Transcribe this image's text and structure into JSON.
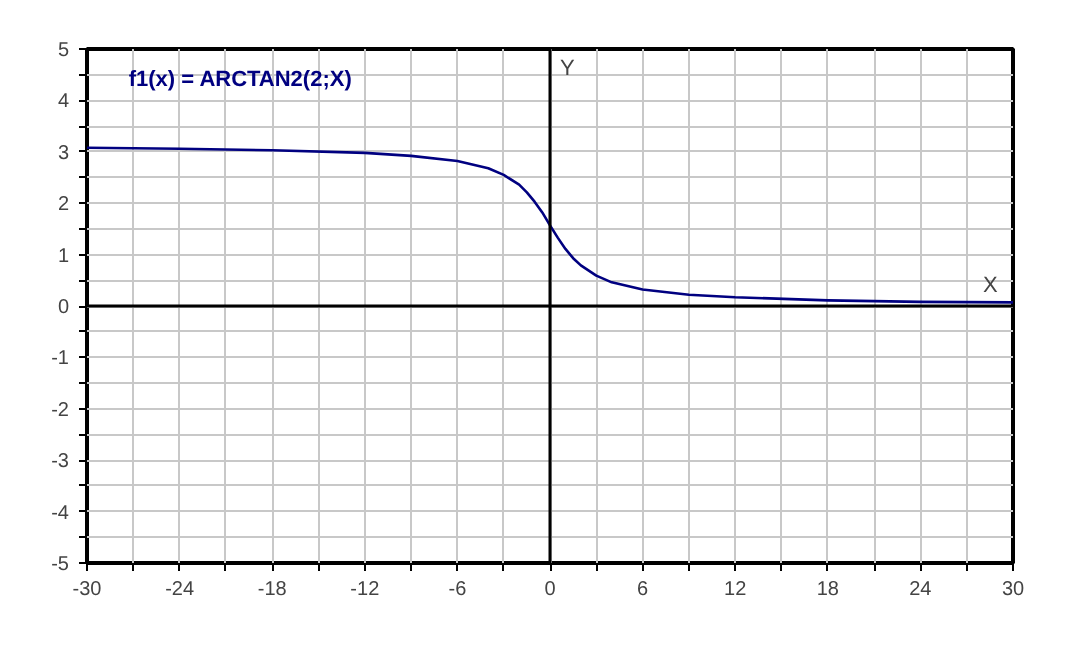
{
  "chart_data": {
    "type": "line",
    "xlabel": "X",
    "ylabel": "Y",
    "x": [
      -30,
      -24,
      -18,
      -12,
      -9,
      -6,
      -4,
      -3,
      -2,
      -1.5,
      -1,
      -0.5,
      0,
      0.5,
      1,
      1.5,
      2,
      3,
      4,
      6,
      9,
      12,
      18,
      24,
      30
    ],
    "series": [
      {
        "name": "f1(x) = ARCTAN2(2;X)",
        "color": "#000080",
        "values": [
          3.08,
          3.06,
          3.03,
          2.98,
          2.92,
          2.82,
          2.68,
          2.55,
          2.36,
          2.21,
          2.03,
          1.82,
          1.57,
          1.33,
          1.11,
          0.93,
          0.79,
          0.59,
          0.46,
          0.32,
          0.22,
          0.17,
          0.11,
          0.08,
          0.07
        ]
      }
    ],
    "xlim": [
      -30,
      30
    ],
    "ylim": [
      -5,
      5
    ],
    "xticks": [
      -30,
      {
        "value": -27,
        "label": null
      },
      -24,
      {
        "value": -21,
        "label": null
      },
      -18,
      {
        "value": -15,
        "label": null
      },
      -12,
      {
        "value": -9,
        "label": null
      },
      -6,
      {
        "value": -3,
        "label": null
      },
      0,
      {
        "value": 3,
        "label": null
      },
      6,
      {
        "value": 9,
        "label": null
      },
      12,
      {
        "value": 15,
        "label": null
      },
      18,
      {
        "value": 21,
        "label": null
      },
      24,
      {
        "value": 27,
        "label": null
      },
      30
    ],
    "yticks": [
      -5,
      {
        "value": -4.5,
        "label": null
      },
      -4,
      {
        "value": -3.5,
        "label": null
      },
      -3,
      {
        "value": -2.5,
        "label": null
      },
      -2,
      {
        "value": -1.5,
        "label": null
      },
      -1,
      {
        "value": -0.5,
        "label": null
      },
      0,
      {
        "value": 0.5,
        "label": null
      },
      1,
      {
        "value": 1.5,
        "label": null
      },
      2,
      {
        "value": 2.5,
        "label": null
      },
      3,
      {
        "value": 3.5,
        "label": null
      },
      4,
      {
        "value": 4.5,
        "label": null
      },
      5
    ],
    "grid": true,
    "legend": "top left",
    "marker": "none",
    "line_style": "solid"
  }
}
